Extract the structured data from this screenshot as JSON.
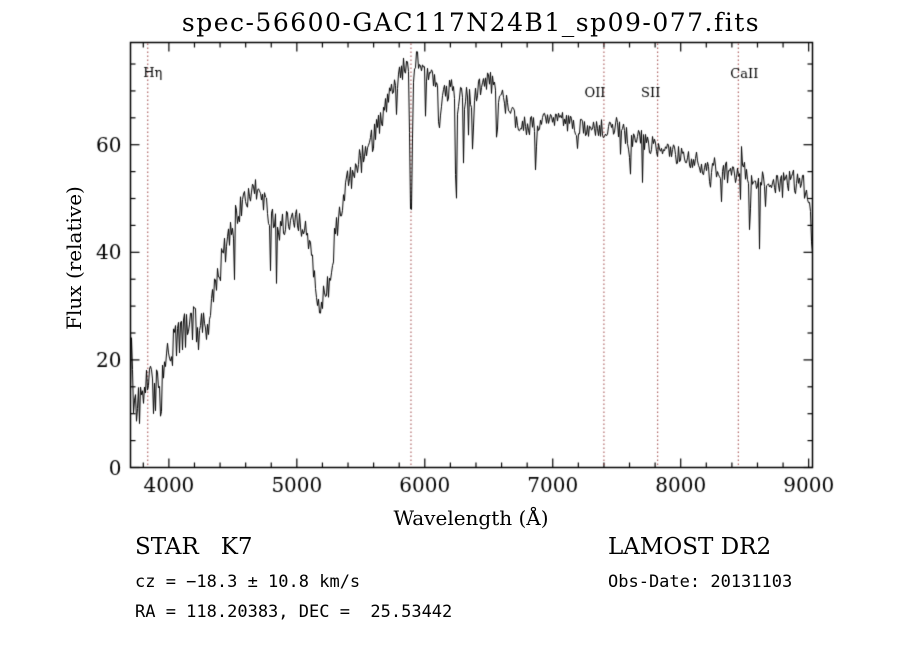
{
  "page": {
    "background": "#ffffff",
    "text_color": "#000000"
  },
  "chart": {
    "title": "spec-56600-GAC117N24B1_sp09-077.fits",
    "xlabel": "Wavelength (Å)",
    "ylabel": "Flux (relative)"
  },
  "chart_data": {
    "type": "line",
    "title": "spec-56600-GAC117N24B1_sp09-077.fits",
    "xlabel": "Wavelength (Å)",
    "ylabel": "Flux (relative)",
    "xlim": [
      3700,
      9030
    ],
    "ylim": [
      0,
      79
    ],
    "x_ticks": [
      4000,
      5000,
      6000,
      7000,
      8000,
      9000
    ],
    "y_ticks": [
      0,
      20,
      40,
      60
    ],
    "x_minor_step": 200,
    "y_minor_step": 5,
    "grid": false,
    "legend": "none",
    "line_color": "#000000",
    "marker_line_color": "#9c4040",
    "marker_lines": [
      {
        "wavelength": 3835,
        "label": "Hη",
        "label_y": 76,
        "label_dx": 5
      },
      {
        "wavelength": 5892,
        "label": "",
        "label_y": 0,
        "label_dx": 0
      },
      {
        "wavelength": 7400,
        "label": "OII",
        "label_y": 96,
        "label_dx": -9
      },
      {
        "wavelength": 7820,
        "label": "SII",
        "label_y": 96,
        "label_dx": -7
      },
      {
        "wavelength": 8450,
        "label": "CaII",
        "label_y": 77,
        "label_dx": 6
      }
    ],
    "continuum": {
      "wavelength": [
        3700,
        3720,
        3760,
        3800,
        3850,
        3900,
        3950,
        4000,
        4050,
        4100,
        4150,
        4200,
        4250,
        4300,
        4350,
        4400,
        4450,
        4500,
        4550,
        4600,
        4650,
        4700,
        4750,
        4800,
        4850,
        4900,
        4950,
        5000,
        5050,
        5100,
        5150,
        5200,
        5250,
        5300,
        5350,
        5400,
        5450,
        5500,
        5550,
        5600,
        5650,
        5700,
        5750,
        5800,
        5850,
        5900,
        5950,
        6000,
        6050,
        6100,
        6150,
        6200,
        6250,
        6300,
        6350,
        6400,
        6450,
        6500,
        6550,
        6600,
        6650,
        6700,
        6750,
        6800,
        6850,
        6900,
        6950,
        7000,
        7100,
        7200,
        7300,
        7400,
        7500,
        7600,
        7700,
        7800,
        7900,
        8000,
        8100,
        8200,
        8300,
        8400,
        8500,
        8600,
        8700,
        8800,
        8900,
        8960,
        9000,
        9020,
        9030
      ],
      "flux": [
        11,
        13,
        12,
        12.5,
        14,
        15,
        17,
        21,
        24,
        25,
        26,
        27,
        27,
        28,
        33,
        37,
        41,
        45,
        48,
        50,
        52,
        51,
        49,
        46,
        46,
        45,
        46,
        47,
        45,
        41,
        34,
        31,
        34,
        43,
        49,
        53,
        55,
        57,
        59,
        61,
        64,
        67,
        70,
        73,
        75,
        76,
        75,
        74,
        72,
        70,
        69,
        70,
        69,
        68,
        69,
        70,
        71,
        72,
        71,
        69,
        67,
        65,
        64,
        63,
        64,
        64,
        65,
        65,
        64,
        63.5,
        63,
        63,
        63.5,
        61,
        61,
        59.5,
        58.5,
        58,
        57,
        56,
        55.5,
        54.5,
        55,
        53.5,
        52,
        52.5,
        53,
        52,
        50,
        44,
        42
      ]
    },
    "features": [
      {
        "wl": 3712,
        "d": -13,
        "s": 5
      },
      {
        "wl": 3934,
        "d": 5,
        "s": 8
      },
      {
        "wl": 4227,
        "d": 5,
        "s": 6
      },
      {
        "wl": 4300,
        "d": 4,
        "s": 12
      },
      {
        "wl": 4861,
        "d": 4,
        "s": 6
      },
      {
        "wl": 5170,
        "d": 4,
        "s": 12
      },
      {
        "wl": 5780,
        "d": 5,
        "s": 5
      },
      {
        "wl": 5892,
        "d": 30,
        "s": 9
      },
      {
        "wl": 6113,
        "d": 9,
        "s": 6
      },
      {
        "wl": 6245,
        "d": 22,
        "s": 6
      },
      {
        "wl": 6375,
        "d": 12,
        "s": 5
      },
      {
        "wl": 6563,
        "d": 9,
        "s": 6
      },
      {
        "wl": 6867,
        "d": 9,
        "s": 6
      },
      {
        "wl": 7190,
        "d": 5,
        "s": 5
      },
      {
        "wl": 7605,
        "d": 7,
        "s": 5
      },
      {
        "wl": 8230,
        "d": 5,
        "s": 5
      },
      {
        "wl": 8475,
        "d": -8,
        "s": 5
      },
      {
        "wl": 8542,
        "d": 6,
        "s": 4
      },
      {
        "wl": 8662,
        "d": 6,
        "s": 4
      }
    ],
    "noise": {
      "seed": 20131103,
      "amp_wavelength": [
        3700,
        3900,
        4100,
        4400,
        4700,
        5000,
        5300,
        5600,
        5900,
        6200,
        6600,
        7000,
        7500,
        8000,
        8600,
        9030
      ],
      "amp": [
        5.5,
        4.5,
        3.5,
        3,
        2.6,
        2.6,
        2.8,
        2.5,
        2.2,
        2.4,
        2.0,
        1.8,
        1.8,
        1.8,
        2.2,
        2.5
      ],
      "spike_probability": 0.015
    }
  },
  "footer": {
    "left": [
      {
        "text": "STAR   K7"
      },
      {
        "text": "cz = −18.3 ± 10.8 km/s"
      },
      {
        "text": "RA = 118.20383, DEC =  25.53442"
      }
    ],
    "right": [
      {
        "text": "LAMOST DR2"
      },
      {
        "text": "Obs-Date: 20131103"
      }
    ]
  }
}
